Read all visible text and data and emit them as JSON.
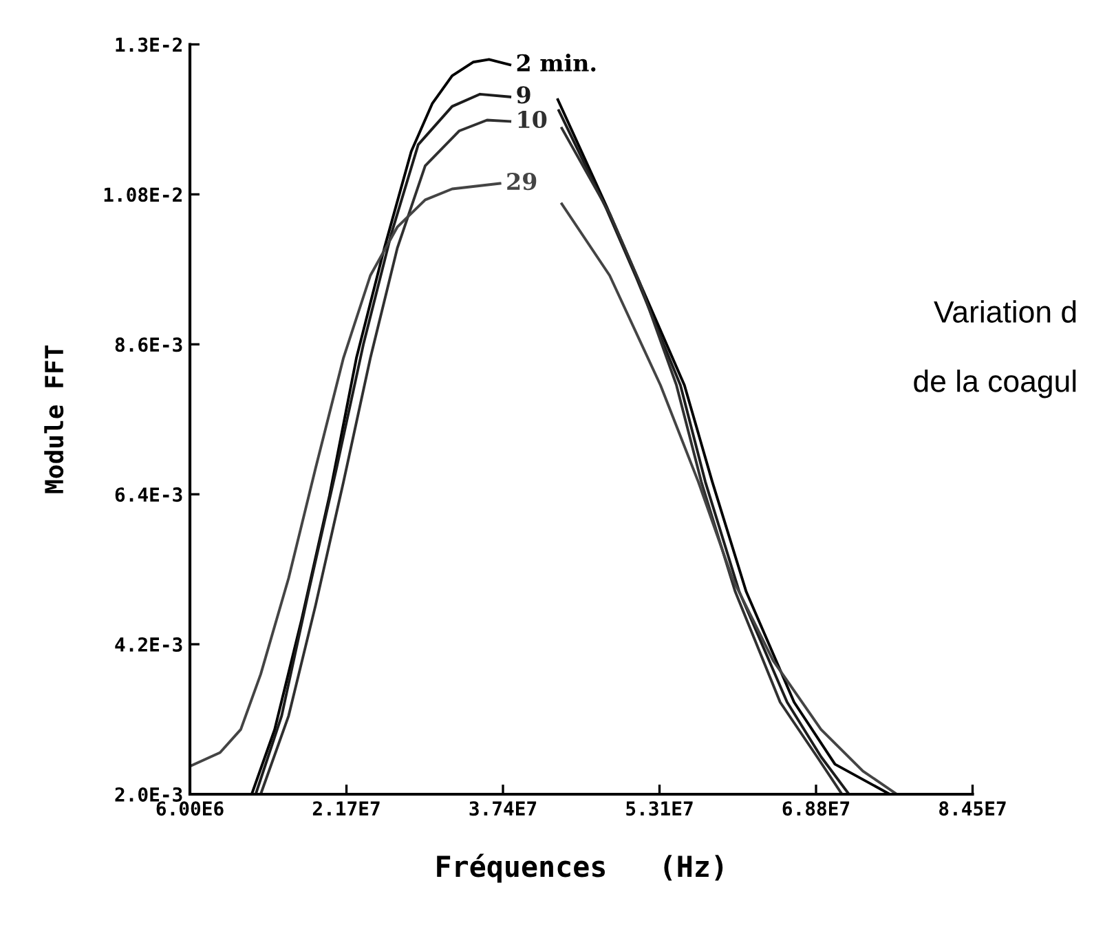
{
  "chart_data": {
    "type": "line",
    "xlabel": "Fréquences   (Hz)",
    "ylabel": "Module FFT",
    "xlim": [
      6000000,
      84500000
    ],
    "xticks": [
      {
        "value": 6000000,
        "label": "6.00E6"
      },
      {
        "value": 21700000,
        "label": "2.17E7"
      },
      {
        "value": 37400000,
        "label": "3.74E7"
      },
      {
        "value": 53100000,
        "label": "5.31E7"
      },
      {
        "value": 68800000,
        "label": "6.88E7"
      },
      {
        "value": 84500000,
        "label": "8.45E7"
      }
    ],
    "ylim": [
      0.002,
      0.013
    ],
    "yticks": [
      {
        "value": 0.002,
        "label": "2.0E-3"
      },
      {
        "value": 0.0042,
        "label": "4.2E-3"
      },
      {
        "value": 0.0064,
        "label": "6.4E-3"
      },
      {
        "value": 0.0086,
        "label": "8.6E-3"
      },
      {
        "value": 0.0108,
        "label": "1.08E-2"
      },
      {
        "value": 0.013,
        "label": "1.3E-2"
      }
    ],
    "grid": false,
    "legend": false,
    "marker": "none",
    "line_style": "solid",
    "annotations": [
      "Variation d",
      "de la coagul"
    ],
    "series": [
      {
        "name": "2 min.",
        "color": "#000000",
        "x": [
          12200000,
          14500000,
          17200000,
          20000000,
          22700000,
          25500000,
          28200000,
          30300000,
          32300000,
          34400000,
          36000000,
          38100000,
          40500000,
          42900000,
          47800000,
          50800000,
          55600000,
          58400000,
          61800000,
          66600000,
          70700000,
          76200000
        ],
        "values": [
          0.002,
          0.00295,
          0.00456,
          0.00638,
          0.0084,
          0.01001,
          0.01143,
          0.01213,
          0.01254,
          0.01274,
          0.01278,
          0.0127,
          null,
          0.01219,
          0.01062,
          0.00961,
          0.008,
          0.00658,
          0.00497,
          0.00335,
          0.00244,
          0.002
        ]
      },
      {
        "name": "9",
        "color": "#1c1c1c",
        "x": [
          12600000,
          15200000,
          17900000,
          20700000,
          23400000,
          26200000,
          28900000,
          32300000,
          35100000,
          38100000,
          40500000,
          43000000,
          47800000,
          50800000,
          55200000,
          57700000,
          61100000,
          65900000,
          69300000,
          72100000
        ],
        "values": [
          0.002,
          0.00315,
          0.00497,
          0.00678,
          0.0086,
          0.01022,
          0.01153,
          0.01209,
          0.01227,
          0.01223,
          null,
          0.01203,
          0.01058,
          0.00957,
          0.008,
          0.00658,
          0.00497,
          0.00335,
          0.00255,
          0.002
        ]
      },
      {
        "name": "10",
        "color": "#303030",
        "x": [
          13100000,
          15900000,
          18600000,
          21400000,
          24100000,
          26800000,
          29600000,
          33000000,
          35800000,
          38100000,
          40500000,
          43300000,
          48100000,
          51100000,
          54800000,
          57300000,
          60700000,
          65200000,
          68900000,
          71400000
        ],
        "values": [
          0.002,
          0.00315,
          0.00477,
          0.00658,
          0.0084,
          0.01001,
          0.01122,
          0.01173,
          0.01189,
          0.01187,
          null,
          0.01177,
          0.01052,
          0.00951,
          0.008,
          0.00658,
          0.00497,
          0.00335,
          0.00255,
          0.002
        ]
      },
      {
        "name": "29",
        "color": "#444444",
        "x": [
          6000000,
          9020000,
          11100000,
          13100000,
          15900000,
          18600000,
          21400000,
          24100000,
          26800000,
          29600000,
          32300000,
          37100000,
          40500000,
          43300000,
          48100000,
          53200000,
          57000000,
          60400000,
          64500000,
          69300000,
          73500000,
          76900000
        ],
        "values": [
          0.00241,
          0.00261,
          0.00295,
          0.00376,
          0.00517,
          0.00678,
          0.0084,
          0.00961,
          0.01032,
          0.01072,
          0.01088,
          0.01096,
          null,
          0.01066,
          0.00961,
          0.008,
          0.00658,
          0.00517,
          0.00396,
          0.00295,
          0.00234,
          0.002
        ]
      }
    ]
  }
}
